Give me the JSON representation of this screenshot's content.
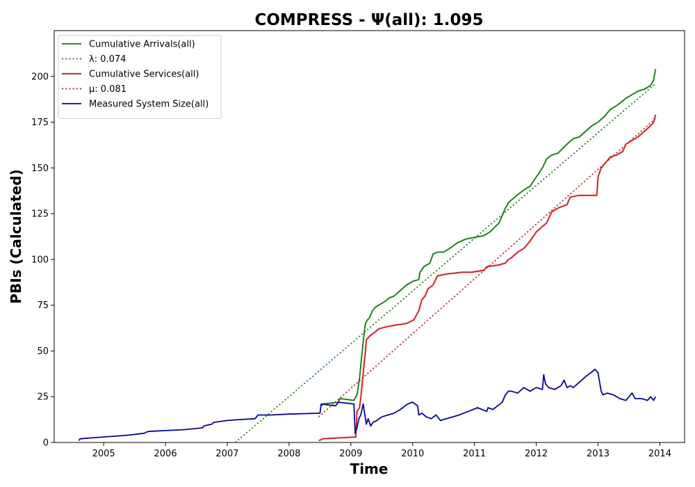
{
  "chart_data": {
    "type": "line",
    "title": "COMPRESS -  Ψ(all): 1.095",
    "xlabel": "Time",
    "ylabel": "PBIs (Calculated)",
    "xlim": [
      2004.2,
      2014.4
    ],
    "ylim": [
      0,
      225
    ],
    "x_ticks": [
      2005,
      2006,
      2007,
      2008,
      2009,
      2010,
      2011,
      2012,
      2013,
      2014
    ],
    "y_ticks": [
      0,
      25,
      50,
      75,
      100,
      125,
      150,
      175,
      200
    ],
    "grid": false,
    "legend_position": "upper-left",
    "series": [
      {
        "name": "Cumulative Arrivals(all)",
        "style": "solid",
        "color": "#008000",
        "x": [
          2008.52,
          2008.55,
          2008.8,
          2008.82,
          2009.05,
          2009.1,
          2009.14,
          2009.17,
          2009.2,
          2009.23,
          2009.25,
          2009.27,
          2009.3,
          2009.35,
          2009.4,
          2009.5,
          2009.55,
          2009.62,
          2009.7,
          2009.8,
          2009.9,
          2010.0,
          2010.1,
          2010.12,
          2010.18,
          2010.28,
          2010.33,
          2010.4,
          2010.5,
          2010.6,
          2010.72,
          2010.85,
          2011.0,
          2011.15,
          2011.25,
          2011.4,
          2011.5,
          2011.55,
          2011.65,
          2011.8,
          2011.9,
          2012.0,
          2012.1,
          2012.17,
          2012.25,
          2012.35,
          2012.5,
          2012.6,
          2012.7,
          2012.8,
          2012.9,
          2013.0,
          2013.1,
          2013.2,
          2013.3,
          2013.45,
          2013.55,
          2013.65,
          2013.75,
          2013.85,
          2013.9,
          2013.93
        ],
        "y": [
          20,
          21,
          22,
          24,
          23,
          26,
          35,
          45,
          55,
          64,
          66,
          67,
          68,
          72,
          74,
          76,
          77,
          79,
          80,
          83,
          86,
          88,
          89,
          93,
          96,
          98,
          103,
          104,
          104,
          106,
          109,
          111,
          112,
          113,
          115,
          120,
          128,
          131,
          134,
          138,
          140,
          145,
          150,
          155,
          157,
          158,
          163,
          166,
          167,
          170,
          173,
          175,
          178,
          182,
          184,
          188,
          190,
          192,
          193,
          195,
          198,
          204
        ]
      },
      {
        "name": "λ: 0.074",
        "style": "dotted",
        "color": "#008000",
        "x": [
          2007.13,
          2013.93
        ],
        "y": [
          0,
          196
        ]
      },
      {
        "name": "Cumulative Services(all)",
        "style": "solid",
        "color": "#ff0000",
        "x": [
          2008.48,
          2008.55,
          2009.08,
          2009.1,
          2009.14,
          2009.17,
          2009.2,
          2009.23,
          2009.25,
          2009.3,
          2009.38,
          2009.45,
          2009.55,
          2009.7,
          2009.9,
          2010.02,
          2010.1,
          2010.15,
          2010.2,
          2010.25,
          2010.33,
          2010.4,
          2010.55,
          2010.8,
          2010.95,
          2011.15,
          2011.2,
          2011.4,
          2011.5,
          2011.55,
          2011.6,
          2011.7,
          2011.8,
          2011.9,
          2012.0,
          2012.1,
          2012.17,
          2012.25,
          2012.35,
          2012.5,
          2012.55,
          2012.7,
          2012.98,
          2013.0,
          2013.05,
          2013.1,
          2013.2,
          2013.3,
          2013.4,
          2013.45,
          2013.55,
          2013.65,
          2013.75,
          2013.85,
          2013.9,
          2013.93
        ],
        "y": [
          1,
          2,
          3,
          17,
          19,
          27,
          38,
          48,
          56,
          58,
          60,
          62,
          63,
          64,
          65,
          67,
          72,
          78,
          80,
          84,
          86,
          91,
          92,
          93,
          93,
          94,
          96,
          97,
          98,
          100,
          101,
          104,
          106,
          110,
          115,
          118,
          120,
          126,
          128,
          130,
          134,
          135,
          135,
          145,
          150,
          152,
          156,
          157,
          159,
          163,
          165,
          167,
          170,
          173,
          175,
          179
        ]
      },
      {
        "name": "μ: 0.081",
        "style": "dotted",
        "color": "#ff0000",
        "x": [
          2008.48,
          2013.93
        ],
        "y": [
          14,
          177
        ]
      },
      {
        "name": "Measured System Size(all)",
        "style": "solid",
        "color": "#0000cc",
        "x": [
          2004.6,
          2004.62,
          2004.8,
          2005.0,
          2005.4,
          2005.65,
          2005.72,
          2006.0,
          2006.3,
          2006.6,
          2006.62,
          2006.75,
          2006.78,
          2007.0,
          2007.2,
          2007.45,
          2007.5,
          2007.7,
          2008.0,
          2008.5,
          2008.52,
          2008.75,
          2008.8,
          2009.05,
          2009.07,
          2009.1,
          2009.13,
          2009.16,
          2009.2,
          2009.25,
          2009.28,
          2009.32,
          2009.36,
          2009.42,
          2009.5,
          2009.6,
          2009.7,
          2009.8,
          2009.92,
          2010.0,
          2010.08,
          2010.1,
          2010.15,
          2010.22,
          2010.3,
          2010.38,
          2010.45,
          2010.55,
          2010.65,
          2010.75,
          2010.9,
          2011.05,
          2011.2,
          2011.22,
          2011.3,
          2011.45,
          2011.5,
          2011.55,
          2011.6,
          2011.7,
          2011.8,
          2011.9,
          2012.0,
          2012.1,
          2012.12,
          2012.15,
          2012.2,
          2012.3,
          2012.4,
          2012.45,
          2012.5,
          2012.55,
          2012.6,
          2012.7,
          2012.8,
          2012.88,
          2012.95,
          2013.0,
          2013.05,
          2013.08,
          2013.15,
          2013.25,
          2013.35,
          2013.45,
          2013.5,
          2013.55,
          2013.6,
          2013.7,
          2013.8,
          2013.85,
          2013.9,
          2013.93
        ],
        "y": [
          1,
          2,
          2.5,
          3,
          4,
          5,
          6,
          6.5,
          7,
          8,
          9,
          10,
          11,
          12,
          12.5,
          13,
          15,
          15,
          15.5,
          16,
          21,
          20,
          22,
          21,
          5,
          8,
          13,
          15,
          21,
          10,
          13,
          9,
          11,
          12,
          14,
          15,
          16,
          18,
          21,
          22,
          20,
          15,
          16,
          14,
          13,
          15,
          12,
          13,
          14,
          15,
          17,
          19,
          17,
          19,
          18,
          22,
          26,
          28,
          28,
          27,
          30,
          28,
          30,
          29,
          37,
          32,
          30,
          29,
          31,
          34,
          30,
          31,
          30,
          33,
          36,
          38,
          40,
          38,
          28,
          26,
          27,
          26,
          24,
          23,
          25,
          27,
          24,
          24,
          23,
          25,
          23,
          25
        ]
      }
    ]
  }
}
